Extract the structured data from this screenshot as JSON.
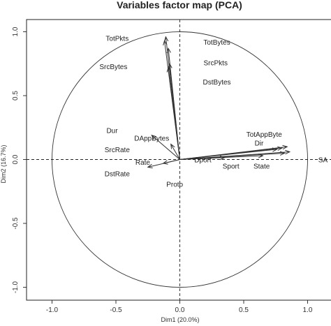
{
  "chart_data": {
    "type": "scatter",
    "title": "Variables factor map (PCA)",
    "xlabel": "Dim1 (20.0%)",
    "ylabel": "Dim2 (16.7%)",
    "xlim": [
      -1.17,
      1.17
    ],
    "ylim": [
      -1.1,
      1.05
    ],
    "x_ticks": [
      {
        "value": -1.0,
        "label": "-1.0"
      },
      {
        "value": -0.5,
        "label": "-0.5"
      },
      {
        "value": 0.0,
        "label": "0.0"
      },
      {
        "value": 0.5,
        "label": "0.5"
      },
      {
        "value": 1.0,
        "label": "1.0"
      }
    ],
    "y_ticks": [
      {
        "value": -1.0,
        "label": "-1.0"
      },
      {
        "value": -0.5,
        "label": "-0.5"
      },
      {
        "value": 0.0,
        "label": "0.0"
      },
      {
        "value": 0.5,
        "label": "0.5"
      },
      {
        "value": 1.0,
        "label": "1.0"
      }
    ],
    "circle_radius": 1.0,
    "arrows": [
      {
        "x": -0.11,
        "y": 0.96
      },
      {
        "x": -0.12,
        "y": 0.93
      },
      {
        "x": -0.09,
        "y": 0.87
      },
      {
        "x": -0.08,
        "y": 0.75
      },
      {
        "x": -0.09,
        "y": 0.72
      },
      {
        "x": 0.84,
        "y": 0.1
      },
      {
        "x": 0.8,
        "y": 0.09
      },
      {
        "x": 0.76,
        "y": 0.08
      },
      {
        "x": 0.86,
        "y": 0.06
      },
      {
        "x": 0.82,
        "y": 0.05
      },
      {
        "x": 0.65,
        "y": 0.03
      },
      {
        "x": 0.35,
        "y": 0.015
      },
      {
        "x": -0.22,
        "y": 0.19
      },
      {
        "x": -0.07,
        "y": 0.12
      },
      {
        "x": -0.25,
        "y": -0.06
      },
      {
        "x": -0.13,
        "y": -0.03
      }
    ],
    "labels": [
      {
        "text": "TotPkts",
        "x": -0.49,
        "y": 0.95
      },
      {
        "text": "SrcBytes",
        "x": -0.52,
        "y": 0.73
      },
      {
        "text": "TotBytes",
        "x": 0.29,
        "y": 0.92
      },
      {
        "text": "SrcPkts",
        "x": 0.28,
        "y": 0.76
      },
      {
        "text": "DstBytes",
        "x": 0.29,
        "y": 0.61
      },
      {
        "text": "Dur",
        "x": -0.53,
        "y": 0.23
      },
      {
        "text": "DAppBytes",
        "x": -0.22,
        "y": 0.17
      },
      {
        "text": "SrcRate",
        "x": -0.49,
        "y": 0.08
      },
      {
        "text": "Rate",
        "x": -0.29,
        "y": -0.02
      },
      {
        "text": "DstRate",
        "x": -0.49,
        "y": -0.11
      },
      {
        "text": "Proto",
        "x": -0.04,
        "y": -0.19
      },
      {
        "text": "TotAppByte",
        "x": 0.66,
        "y": 0.2
      },
      {
        "text": "Dir",
        "x": 0.62,
        "y": 0.13
      },
      {
        "text": "Dport",
        "x": 0.18,
        "y": 0.0
      },
      {
        "text": "Sport",
        "x": 0.4,
        "y": -0.05
      },
      {
        "text": "State",
        "x": 0.64,
        "y": -0.05
      },
      {
        "text": "SA",
        "x": 1.12,
        "y": 0.0
      }
    ]
  }
}
